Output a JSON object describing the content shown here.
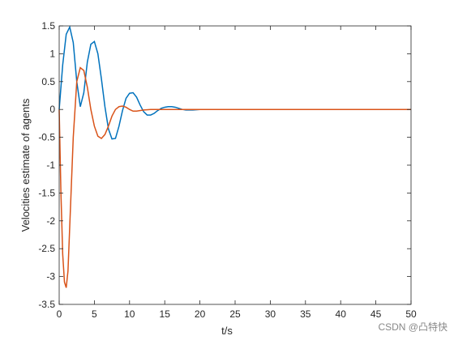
{
  "chart_data": {
    "type": "line",
    "xlabel": "t/s",
    "ylabel": "Velocities estimate of agents",
    "xlim": [
      0,
      50
    ],
    "xticks": [
      0,
      5,
      10,
      15,
      20,
      25,
      30,
      35,
      40,
      45,
      50
    ],
    "ylim": [
      -3.5,
      1.5
    ],
    "yticks": [
      -3.5,
      -3,
      -2.5,
      -2,
      -1.5,
      -1,
      -0.5,
      0,
      0.5,
      1,
      1.5
    ],
    "series": [
      {
        "color": "#0072bd",
        "x": [
          0,
          0.5,
          1,
          1.5,
          2,
          2.5,
          3,
          3.5,
          4,
          4.5,
          5,
          5.5,
          6,
          6.5,
          7,
          7.5,
          8,
          8.5,
          9,
          9.5,
          10,
          10.5,
          11,
          11.5,
          12,
          12.5,
          13,
          13.5,
          14,
          14.5,
          15,
          15.5,
          16,
          16.5,
          17,
          17.5,
          18,
          18.5,
          19,
          20,
          25,
          30,
          35,
          40,
          45,
          50
        ],
        "values": [
          0,
          0.8,
          1.35,
          1.48,
          1.2,
          0.5,
          0.05,
          0.3,
          0.85,
          1.17,
          1.22,
          1.0,
          0.55,
          0.05,
          -0.35,
          -0.53,
          -0.52,
          -0.3,
          -0.02,
          0.2,
          0.29,
          0.3,
          0.22,
          0.08,
          -0.04,
          -0.1,
          -0.1,
          -0.07,
          -0.02,
          0.02,
          0.04,
          0.05,
          0.05,
          0.04,
          0.02,
          0,
          -0.01,
          -0.01,
          -0.01,
          0,
          0,
          0,
          0,
          0,
          0,
          0
        ]
      },
      {
        "color": "#d95319",
        "x": [
          0,
          0.25,
          0.5,
          0.75,
          1,
          1.25,
          1.5,
          2,
          2.5,
          3,
          3.5,
          4,
          4.5,
          5,
          5.5,
          6,
          6.5,
          7,
          7.5,
          8,
          8.5,
          9,
          9.5,
          10,
          10.5,
          11,
          12,
          13,
          15,
          20,
          25,
          30,
          35,
          40,
          45,
          50
        ],
        "values": [
          0,
          -1.5,
          -2.6,
          -3.1,
          -3.2,
          -2.9,
          -2.1,
          -0.5,
          0.5,
          0.75,
          0.7,
          0.4,
          0,
          -0.3,
          -0.48,
          -0.52,
          -0.45,
          -0.3,
          -0.12,
          0,
          0.05,
          0.06,
          0.04,
          0,
          -0.03,
          -0.03,
          -0.01,
          0,
          0,
          0,
          0,
          0,
          0,
          0,
          0,
          0
        ]
      }
    ]
  },
  "watermark": "CSDN @凸特快"
}
